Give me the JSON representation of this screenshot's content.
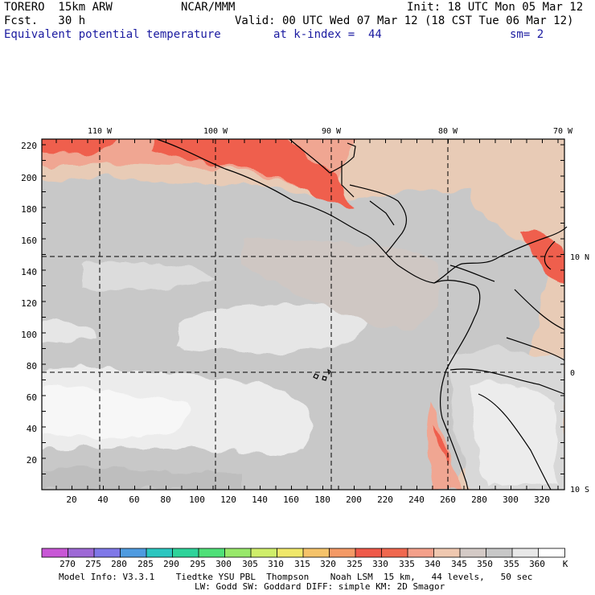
{
  "header": {
    "model": "TORERO  15km ARW",
    "org": "NCAR/MMM",
    "init": "Init: 18 UTC Mon 05 Mar 12",
    "fcst": "Fcst.   30 h",
    "valid": "Valid: 00 UTC Wed 07 Mar 12 (18 CST Tue 06 Mar 12)",
    "field": "Equivalent potential temperature",
    "level": "at k-index =  44",
    "smooth": "sm= 2"
  },
  "map": {
    "top_lon_labels": [
      "110 W",
      "100 W",
      "90 W",
      "80 W",
      "70 W"
    ],
    "right_lat_labels": [
      "10 N",
      "0",
      "10 S"
    ],
    "y_ticks": [
      "220",
      "200",
      "180",
      "160",
      "140",
      "120",
      "100",
      "80",
      "60",
      "40",
      "20"
    ],
    "x_ticks": [
      "20",
      "40",
      "60",
      "80",
      "100",
      "120",
      "140",
      "160",
      "180",
      "200",
      "220",
      "240",
      "260",
      "280",
      "300",
      "320"
    ]
  },
  "colorbar": {
    "unit": "K",
    "labels": [
      "270",
      "275",
      "280",
      "285",
      "290",
      "295",
      "300",
      "305",
      "310",
      "315",
      "320",
      "325",
      "330",
      "335",
      "340",
      "345",
      "350",
      "355",
      "360"
    ],
    "colors": [
      "#c857d6",
      "#9e69d6",
      "#7f78e8",
      "#4f9be0",
      "#2cc6c0",
      "#2ed39a",
      "#4fe078",
      "#98e86a",
      "#cfee6a",
      "#f0e86a",
      "#f5c36a",
      "#f49a66",
      "#ef5a4a",
      "#f0684f",
      "#f4a08a",
      "#efc8b0",
      "#d4cac6",
      "#c8c8c8",
      "#e8e8e8",
      "#ffffff"
    ]
  },
  "footer": {
    "line1": "Model Info: V3.3.1    Tiedtke YSU PBL  Thompson    Noah LSM  15 km,   44 levels,   50 sec",
    "line2": "LW: Godd SW: Goddard DIFF: simple KM: 2D Smagor"
  }
}
